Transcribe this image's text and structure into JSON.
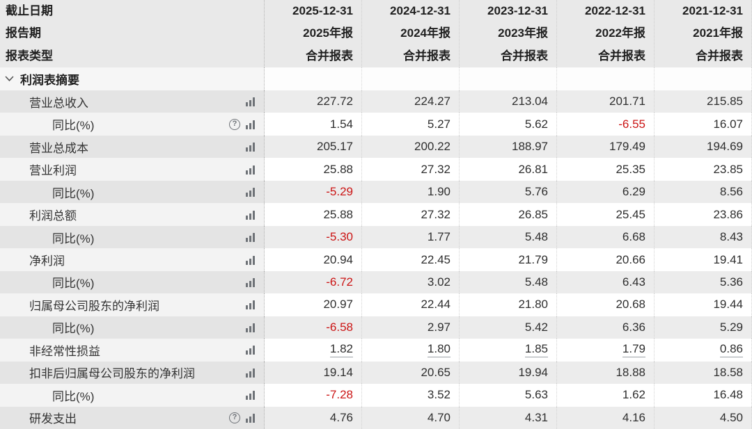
{
  "header": {
    "label_lines": [
      "截止日期",
      "报告期",
      "报表类型"
    ],
    "columns": [
      {
        "date": "2025-12-31",
        "period": "2025年报",
        "type": "合并报表"
      },
      {
        "date": "2024-12-31",
        "period": "2024年报",
        "type": "合并报表"
      },
      {
        "date": "2023-12-31",
        "period": "2023年报",
        "type": "合并报表"
      },
      {
        "date": "2022-12-31",
        "period": "2022年报",
        "type": "合并报表"
      },
      {
        "date": "2021-12-31",
        "period": "2021年报",
        "type": "合并报表"
      }
    ]
  },
  "section": {
    "title": "利润表摘要"
  },
  "rows": [
    {
      "label": "营业总收入",
      "indent": 1,
      "icons": [
        "chart"
      ],
      "values": [
        "227.72",
        "224.27",
        "213.04",
        "201.71",
        "215.85"
      ]
    },
    {
      "label": "同比(%)",
      "indent": 2,
      "icons": [
        "help",
        "chart"
      ],
      "values": [
        "1.54",
        "5.27",
        "5.62",
        "-6.55",
        "16.07"
      ]
    },
    {
      "label": "营业总成本",
      "indent": 1,
      "icons": [
        "chart"
      ],
      "values": [
        "205.17",
        "200.22",
        "188.97",
        "179.49",
        "194.69"
      ]
    },
    {
      "label": "营业利润",
      "indent": 1,
      "icons": [
        "chart"
      ],
      "values": [
        "25.88",
        "27.32",
        "26.81",
        "25.35",
        "23.85"
      ]
    },
    {
      "label": "同比(%)",
      "indent": 2,
      "icons": [
        "chart"
      ],
      "values": [
        "-5.29",
        "1.90",
        "5.76",
        "6.29",
        "8.56"
      ]
    },
    {
      "label": "利润总额",
      "indent": 1,
      "icons": [
        "chart"
      ],
      "values": [
        "25.88",
        "27.32",
        "26.85",
        "25.45",
        "23.86"
      ]
    },
    {
      "label": "同比(%)",
      "indent": 2,
      "icons": [
        "chart"
      ],
      "values": [
        "-5.30",
        "1.77",
        "5.48",
        "6.68",
        "8.43"
      ]
    },
    {
      "label": "净利润",
      "indent": 1,
      "icons": [
        "chart"
      ],
      "values": [
        "20.94",
        "22.45",
        "21.79",
        "20.66",
        "19.41"
      ]
    },
    {
      "label": "同比(%)",
      "indent": 2,
      "icons": [
        "chart"
      ],
      "values": [
        "-6.72",
        "3.02",
        "5.48",
        "6.43",
        "5.36"
      ]
    },
    {
      "label": "归属母公司股东的净利润",
      "indent": 1,
      "icons": [
        "chart"
      ],
      "values": [
        "20.97",
        "22.44",
        "21.80",
        "20.68",
        "19.44"
      ]
    },
    {
      "label": "同比(%)",
      "indent": 2,
      "icons": [
        "chart"
      ],
      "values": [
        "-6.58",
        "2.97",
        "5.42",
        "6.36",
        "5.29"
      ]
    },
    {
      "label": "非经常性损益",
      "indent": 1,
      "icons": [
        "chart"
      ],
      "underline": true,
      "values": [
        "1.82",
        "1.80",
        "1.85",
        "1.79",
        "0.86"
      ]
    },
    {
      "label": "扣非后归属母公司股东的净利润",
      "indent": 1,
      "icons": [
        "chart"
      ],
      "values": [
        "19.14",
        "20.65",
        "19.94",
        "18.88",
        "18.58"
      ]
    },
    {
      "label": "同比(%)",
      "indent": 2,
      "icons": [
        "chart"
      ],
      "values": [
        "-7.28",
        "3.52",
        "5.63",
        "1.62",
        "16.48"
      ]
    },
    {
      "label": "研发支出",
      "indent": 1,
      "icons": [
        "help",
        "chart"
      ],
      "values": [
        "4.76",
        "4.70",
        "4.31",
        "4.16",
        "4.50"
      ]
    }
  ],
  "icon_names": {
    "chart": "bar-chart-icon",
    "help": "question-circle-icon",
    "collapse": "chevron-down-icon"
  },
  "colors": {
    "negative_value": "#cb1414",
    "header_bg": "#e9e9e9",
    "zebra_gray_values": "#ececec",
    "zebra_gray_label": "#e4e4e4",
    "zebra_white_label": "#f3f3f3",
    "icon_gray": "#6e7277"
  }
}
